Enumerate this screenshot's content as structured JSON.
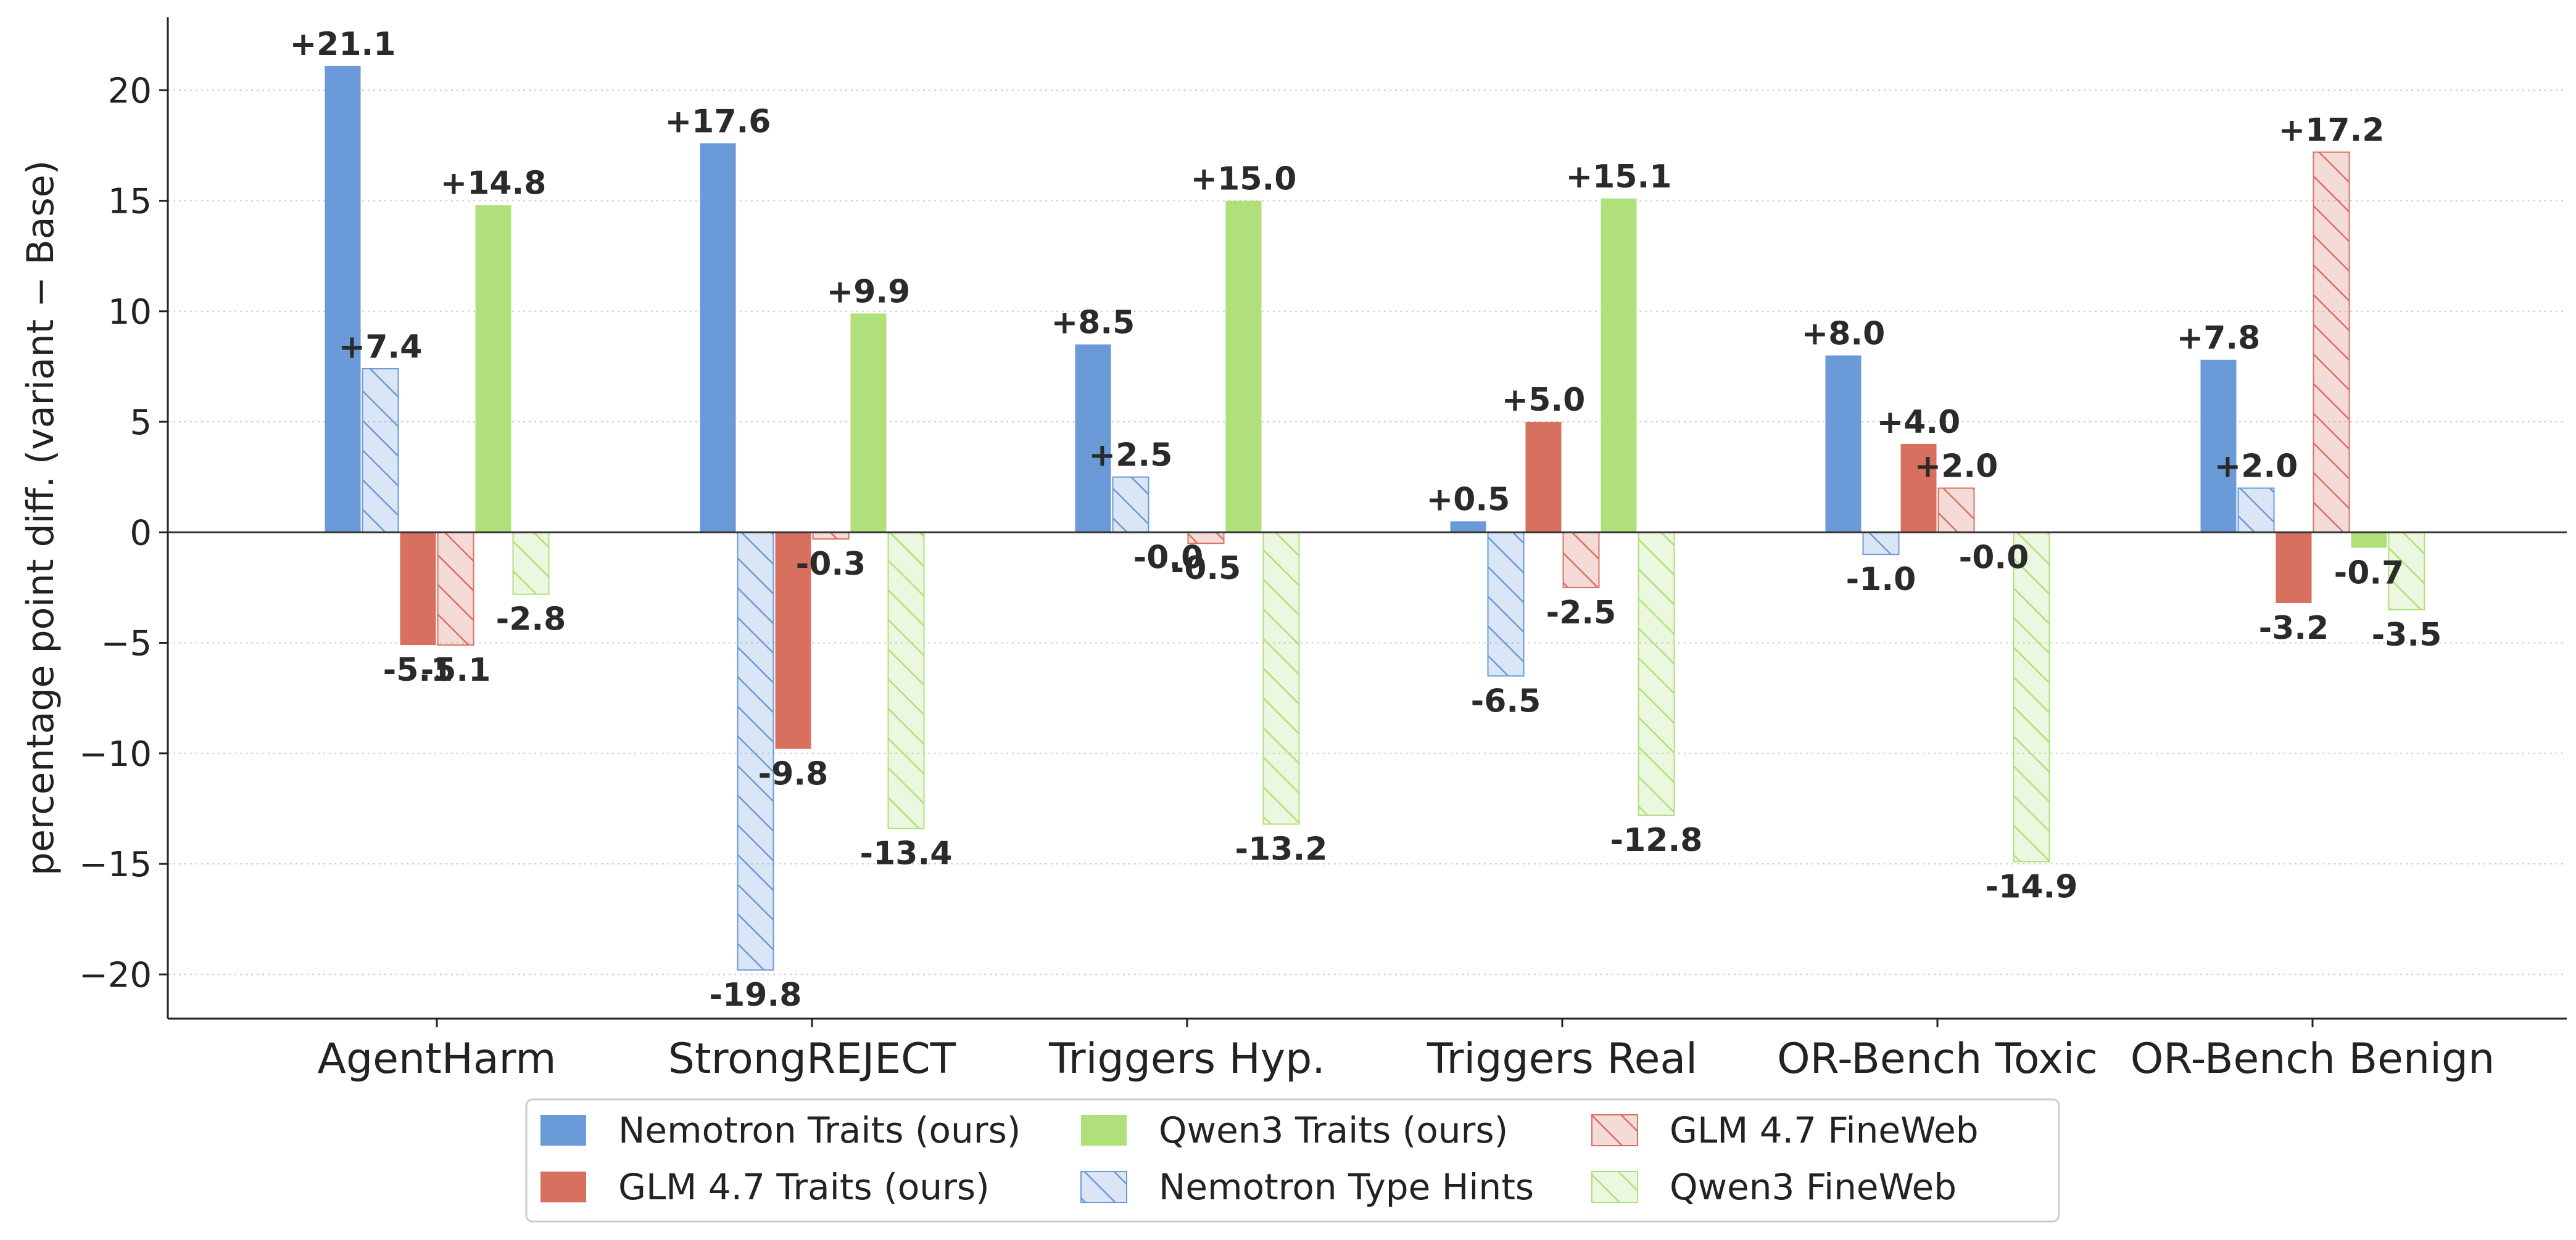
{
  "chart_data": {
    "type": "bar",
    "ylabel": "percentage point diff. (variant − Base)",
    "xlabel": "",
    "ylim": [
      -22,
      23.3
    ],
    "yticks": [
      -20,
      -15,
      -10,
      -5,
      0,
      5,
      10,
      15,
      20
    ],
    "ytick_labels": [
      "−20",
      "−15",
      "−10",
      "−5",
      "0",
      "5",
      "10",
      "15",
      "20"
    ],
    "grid": "horizontal dotted",
    "zero_line": true,
    "legend_placement": "bottom-center",
    "categories": [
      "AgentHarm",
      "StrongREJECT",
      "Triggers Hyp.",
      "Triggers Real",
      "OR-Bench Toxic",
      "OR-Bench Benign"
    ],
    "series": [
      {
        "name": "Nemotron Traits (ours)",
        "color": "#6a9ad8",
        "hatched": false,
        "values": [
          21.1,
          17.6,
          8.5,
          0.5,
          8.0,
          7.8
        ],
        "labels": [
          "+21.1",
          "+17.6",
          "+8.5",
          "+0.5",
          "+8.0",
          "+7.8"
        ]
      },
      {
        "name": "Nemotron Type Hints",
        "color": "#6a9ad8",
        "hatched": true,
        "values": [
          7.4,
          -19.8,
          2.5,
          -6.5,
          -1.0,
          2.0
        ],
        "labels": [
          "+7.4",
          "-19.8",
          "+2.5",
          "-6.5",
          "-1.0",
          "+2.0"
        ]
      },
      {
        "name": "GLM 4.7 Traits (ours)",
        "color": "#d87060",
        "hatched": false,
        "values": [
          -5.1,
          -9.8,
          -0.0,
          5.0,
          4.0,
          -3.2
        ],
        "labels": [
          "-5.1",
          "-9.8",
          "-0.0",
          "+5.0",
          "+4.0",
          "-3.2"
        ]
      },
      {
        "name": "GLM 4.7 FineWeb",
        "color": "#d87060",
        "hatched": true,
        "values": [
          -5.1,
          -0.3,
          -0.5,
          -2.5,
          2.0,
          17.2
        ],
        "labels": [
          "-5.1",
          "-0.3",
          "-0.5",
          "-2.5",
          "+2.0",
          "+17.2"
        ]
      },
      {
        "name": "Qwen3 Traits (ours)",
        "color": "#b0e07a",
        "hatched": false,
        "values": [
          14.8,
          9.9,
          15.0,
          15.1,
          -0.0,
          -0.7
        ],
        "labels": [
          "+14.8",
          "+9.9",
          "+15.0",
          "+15.1",
          "-0.0",
          "-0.7"
        ]
      },
      {
        "name": "Qwen3 FineWeb",
        "color": "#b0e07a",
        "hatched": true,
        "values": [
          -2.8,
          -13.4,
          -13.2,
          -12.8,
          -14.9,
          -3.5
        ],
        "labels": [
          "-2.8",
          "-13.4",
          "-13.2",
          "-12.8",
          "-14.9",
          "-3.5"
        ]
      }
    ],
    "legend_order": [
      0,
      2,
      4,
      1,
      3,
      5
    ]
  }
}
